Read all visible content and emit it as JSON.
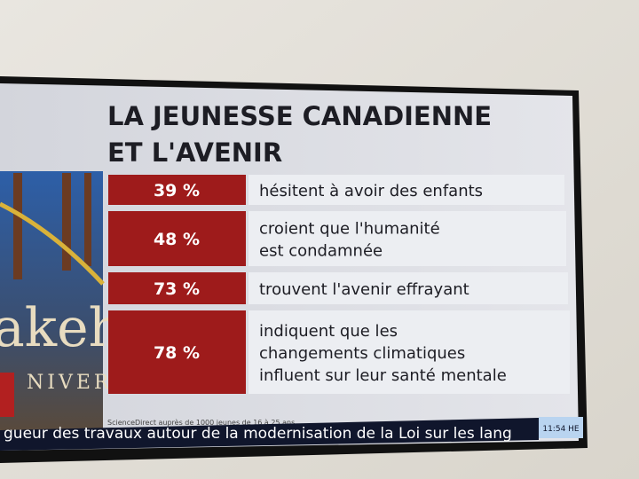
{
  "header": {
    "title": [
      "LA JEUNESSE CANADIENNE",
      "ET L'AVENIR"
    ]
  },
  "table": {
    "rows": [
      {
        "value": "39 %",
        "text": [
          "hésitent à avoir des enfants"
        ]
      },
      {
        "value": "48 %",
        "text": [
          "croient que l'humanité",
          "est condamnée"
        ]
      },
      {
        "value": "73 %",
        "text": [
          "trouvent l'avenir effrayant"
        ]
      },
      {
        "value": "78 %",
        "text": [
          "indiquent que les",
          "changements climatiques",
          "influent sur leur santé mentale"
        ]
      }
    ]
  },
  "source": "ScienceDirect auprès de 1000 jeunes de 16 à 25 ans",
  "ticker": {
    "text": "gueur des travaux autour de la modernisation de la Loi sur les lang",
    "time": "11:54 HE"
  },
  "background_sign": {
    "word": "akehe",
    "subword": "NIVERS"
  }
}
